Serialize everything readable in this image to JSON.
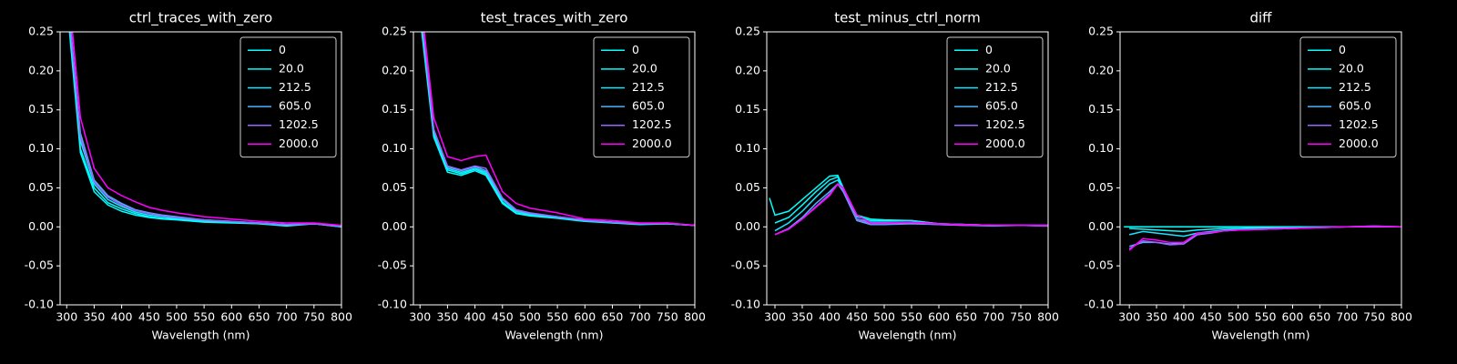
{
  "chart_data": [
    {
      "type": "line",
      "title": "ctrl_traces_with_zero",
      "x_label": "Wavelength (nm)",
      "x": [
        300,
        325,
        350,
        375,
        400,
        425,
        450,
        475,
        500,
        550,
        600,
        650,
        700,
        750,
        800
      ],
      "series": [
        {
          "name": "0",
          "color": "#00ffff",
          "values": [
            0.29,
            0.095,
            0.045,
            0.028,
            0.02,
            0.015,
            0.012,
            0.01,
            0.009,
            0.006,
            0.005,
            0.004,
            0.001,
            0.004,
            0.0
          ]
        },
        {
          "name": "20.0",
          "color": "#03fcff",
          "values": [
            0.3,
            0.1,
            0.05,
            0.031,
            0.023,
            0.017,
            0.013,
            0.011,
            0.01,
            0.007,
            0.006,
            0.004,
            0.002,
            0.004,
            0.0
          ]
        },
        {
          "name": "212.5",
          "color": "#1be4ff",
          "values": [
            0.3,
            0.11,
            0.055,
            0.035,
            0.026,
            0.019,
            0.015,
            0.013,
            0.011,
            0.008,
            0.006,
            0.005,
            0.003,
            0.004,
            0.001
          ]
        },
        {
          "name": "605.0",
          "color": "#4db2ff",
          "values": [
            0.31,
            0.12,
            0.06,
            0.04,
            0.03,
            0.022,
            0.018,
            0.015,
            0.013,
            0.009,
            0.007,
            0.005,
            0.003,
            0.004,
            0.001
          ]
        },
        {
          "name": "1202.5",
          "color": "#9966ff",
          "values": [
            0.31,
            0.115,
            0.058,
            0.038,
            0.028,
            0.021,
            0.017,
            0.014,
            0.012,
            0.009,
            0.007,
            0.005,
            0.003,
            0.004,
            0.001
          ]
        },
        {
          "name": "2000.0",
          "color": "#ff00ff",
          "values": [
            0.33,
            0.14,
            0.075,
            0.05,
            0.04,
            0.032,
            0.025,
            0.021,
            0.018,
            0.013,
            0.01,
            0.007,
            0.005,
            0.005,
            0.002
          ]
        }
      ],
      "xlim": [
        288,
        800
      ],
      "xticks": [
        300,
        350,
        400,
        450,
        500,
        550,
        600,
        650,
        700,
        750,
        800
      ],
      "ylim": [
        -0.1,
        0.25
      ],
      "yticks": [
        {
          "value": -0.1,
          "label": "-0.10"
        },
        -0.05,
        {
          "value": 0,
          "label": "0.00"
        },
        0.05,
        {
          "value": 0.1,
          "label": "0.10"
        },
        0.15,
        {
          "value": 0.2,
          "label": "0.20"
        },
        0.25
      ],
      "legend": "upper right"
    },
    {
      "type": "line",
      "title": "test_traces_with_zero",
      "x_label": "Wavelength (nm)",
      "x": [
        300,
        325,
        350,
        375,
        400,
        420,
        450,
        475,
        500,
        550,
        600,
        650,
        700,
        750,
        800
      ],
      "series": [
        {
          "name": "0",
          "color": "#00ffff",
          "values": [
            0.27,
            0.115,
            0.07,
            0.066,
            0.072,
            0.066,
            0.03,
            0.017,
            0.014,
            0.011,
            0.007,
            0.005,
            0.003,
            0.004,
            0.002
          ]
        },
        {
          "name": "20.0",
          "color": "#03fcff",
          "values": [
            0.28,
            0.12,
            0.073,
            0.068,
            0.074,
            0.068,
            0.032,
            0.018,
            0.015,
            0.012,
            0.008,
            0.006,
            0.004,
            0.004,
            0.002
          ]
        },
        {
          "name": "212.5",
          "color": "#1be4ff",
          "values": [
            0.28,
            0.12,
            0.075,
            0.07,
            0.075,
            0.07,
            0.035,
            0.02,
            0.016,
            0.012,
            0.008,
            0.006,
            0.004,
            0.004,
            0.002
          ]
        },
        {
          "name": "605.0",
          "color": "#4db2ff",
          "values": [
            0.29,
            0.125,
            0.077,
            0.072,
            0.077,
            0.072,
            0.036,
            0.021,
            0.017,
            0.013,
            0.008,
            0.006,
            0.004,
            0.004,
            0.002
          ]
        },
        {
          "name": "1202.5",
          "color": "#9966ff",
          "values": [
            0.29,
            0.125,
            0.078,
            0.073,
            0.078,
            0.075,
            0.037,
            0.022,
            0.018,
            0.013,
            0.009,
            0.006,
            0.004,
            0.005,
            0.002
          ]
        },
        {
          "name": "2000.0",
          "color": "#ff00ff",
          "values": [
            0.3,
            0.14,
            0.09,
            0.085,
            0.09,
            0.092,
            0.045,
            0.03,
            0.024,
            0.018,
            0.01,
            0.008,
            0.005,
            0.005,
            0.002
          ]
        }
      ],
      "xlim": [
        288,
        800
      ],
      "xticks": [
        300,
        350,
        400,
        450,
        500,
        550,
        600,
        650,
        700,
        750,
        800
      ],
      "ylim": [
        -0.1,
        0.25
      ],
      "yticks": [
        {
          "value": -0.1,
          "label": "-0.10"
        },
        -0.05,
        {
          "value": 0,
          "label": "0.00"
        },
        0.05,
        {
          "value": 0.1,
          "label": "0.10"
        },
        0.15,
        {
          "value": 0.2,
          "label": "0.20"
        },
        0.25
      ],
      "legend": "upper right"
    },
    {
      "type": "line",
      "title": "test_minus_ctrl_norm",
      "x_label": "Wavelength (nm)",
      "x": [
        290,
        300,
        325,
        350,
        375,
        400,
        415,
        425,
        450,
        475,
        500,
        550,
        600,
        650,
        700,
        750,
        800
      ],
      "series": [
        {
          "name": "0",
          "color": "#00ffff",
          "values": [
            0.037,
            0.015,
            0.02,
            0.035,
            0.05,
            0.065,
            0.066,
            0.05,
            0.015,
            0.01,
            0.009,
            0.008,
            0.004,
            0.003,
            0.002,
            0.002,
            0.002
          ]
        },
        {
          "name": "20.0",
          "color": "#03fcff",
          "values": [
            null,
            0.005,
            0.012,
            0.028,
            0.045,
            0.06,
            0.064,
            0.05,
            0.013,
            0.008,
            0.008,
            0.008,
            0.004,
            0.003,
            0.002,
            0.002,
            0.002
          ]
        },
        {
          "name": "212.5",
          "color": "#1be4ff",
          "values": [
            null,
            -0.005,
            0.005,
            0.02,
            0.038,
            0.055,
            0.06,
            0.048,
            0.01,
            0.006,
            0.006,
            0.006,
            0.004,
            0.003,
            0.002,
            0.002,
            0.002
          ]
        },
        {
          "name": "605.0",
          "color": "#4db2ff",
          "values": [
            null,
            -0.01,
            -0.002,
            0.012,
            0.03,
            0.045,
            0.055,
            0.045,
            0.008,
            0.003,
            0.003,
            0.004,
            0.003,
            0.002,
            0.001,
            0.002,
            0.001
          ]
        },
        {
          "name": "1202.5",
          "color": "#9966ff",
          "values": [
            null,
            -0.01,
            -0.003,
            0.01,
            0.026,
            0.042,
            0.055,
            0.047,
            0.01,
            0.004,
            0.004,
            0.005,
            0.003,
            0.002,
            0.002,
            0.002,
            0.001
          ]
        },
        {
          "name": "2000.0",
          "color": "#ff00ff",
          "values": [
            null,
            -0.01,
            -0.003,
            0.01,
            0.025,
            0.04,
            0.055,
            0.05,
            0.015,
            0.005,
            0.005,
            0.006,
            0.004,
            0.003,
            0.002,
            0.002,
            0.002
          ]
        }
      ],
      "xlim": [
        285,
        800
      ],
      "xticks": [
        300,
        350,
        400,
        450,
        500,
        550,
        600,
        650,
        700,
        750,
        800
      ],
      "ylim": [
        -0.1,
        0.25
      ],
      "yticks": [
        {
          "value": -0.1,
          "label": "-0.10"
        },
        -0.05,
        {
          "value": 0,
          "label": "0.00"
        },
        0.05,
        {
          "value": 0.1,
          "label": "0.10"
        },
        0.15,
        {
          "value": 0.2,
          "label": "0.20"
        },
        0.25
      ],
      "legend": "upper right"
    },
    {
      "type": "line",
      "title": "diff",
      "x_label": "Wavelength (nm)",
      "x": [
        290,
        300,
        325,
        350,
        375,
        400,
        425,
        450,
        475,
        500,
        550,
        600,
        650,
        700,
        750,
        800
      ],
      "series": [
        {
          "name": "0",
          "color": "#00ffff",
          "values": [
            0,
            0,
            0,
            0,
            0,
            0,
            0,
            0,
            0,
            0,
            0,
            0,
            0,
            0,
            0,
            0
          ]
        },
        {
          "name": "20.0",
          "color": "#03fcff",
          "values": [
            null,
            -0.002,
            -0.003,
            -0.004,
            -0.005,
            -0.006,
            -0.004,
            -0.003,
            -0.002,
            -0.002,
            -0.001,
            -0.001,
            0,
            0,
            0,
            0
          ]
        },
        {
          "name": "212.5",
          "color": "#1be4ff",
          "values": [
            null,
            -0.01,
            -0.006,
            -0.008,
            -0.01,
            -0.012,
            -0.008,
            -0.006,
            -0.004,
            -0.003,
            -0.002,
            -0.001,
            0,
            0,
            0.001,
            0
          ]
        },
        {
          "name": "605.0",
          "color": "#4db2ff",
          "values": [
            null,
            -0.025,
            -0.02,
            -0.02,
            -0.022,
            -0.02,
            -0.01,
            -0.007,
            -0.005,
            -0.004,
            -0.003,
            -0.002,
            -0.001,
            0,
            0,
            0
          ]
        },
        {
          "name": "1202.5",
          "color": "#9966ff",
          "values": [
            null,
            -0.028,
            -0.018,
            -0.02,
            -0.023,
            -0.022,
            -0.01,
            -0.008,
            -0.005,
            -0.004,
            -0.003,
            -0.002,
            -0.001,
            0,
            0,
            0
          ]
        },
        {
          "name": "2000.0",
          "color": "#ff00ff",
          "values": [
            null,
            -0.03,
            -0.015,
            -0.017,
            -0.02,
            -0.02,
            -0.008,
            -0.007,
            -0.005,
            -0.004,
            -0.003,
            -0.002,
            -0.001,
            0,
            0.001,
            0
          ]
        }
      ],
      "xlim": [
        283,
        800
      ],
      "xticks": [
        300,
        350,
        400,
        450,
        500,
        550,
        600,
        650,
        700,
        750,
        800
      ],
      "ylim": [
        -0.1,
        0.25
      ],
      "yticks": [
        {
          "value": -0.1,
          "label": "-0.10"
        },
        -0.05,
        {
          "value": 0,
          "label": "0.00"
        },
        0.05,
        {
          "value": 0.1,
          "label": "0.10"
        },
        0.15,
        {
          "value": 0.2,
          "label": "0.20"
        },
        0.25
      ],
      "legend": "upper right"
    }
  ]
}
